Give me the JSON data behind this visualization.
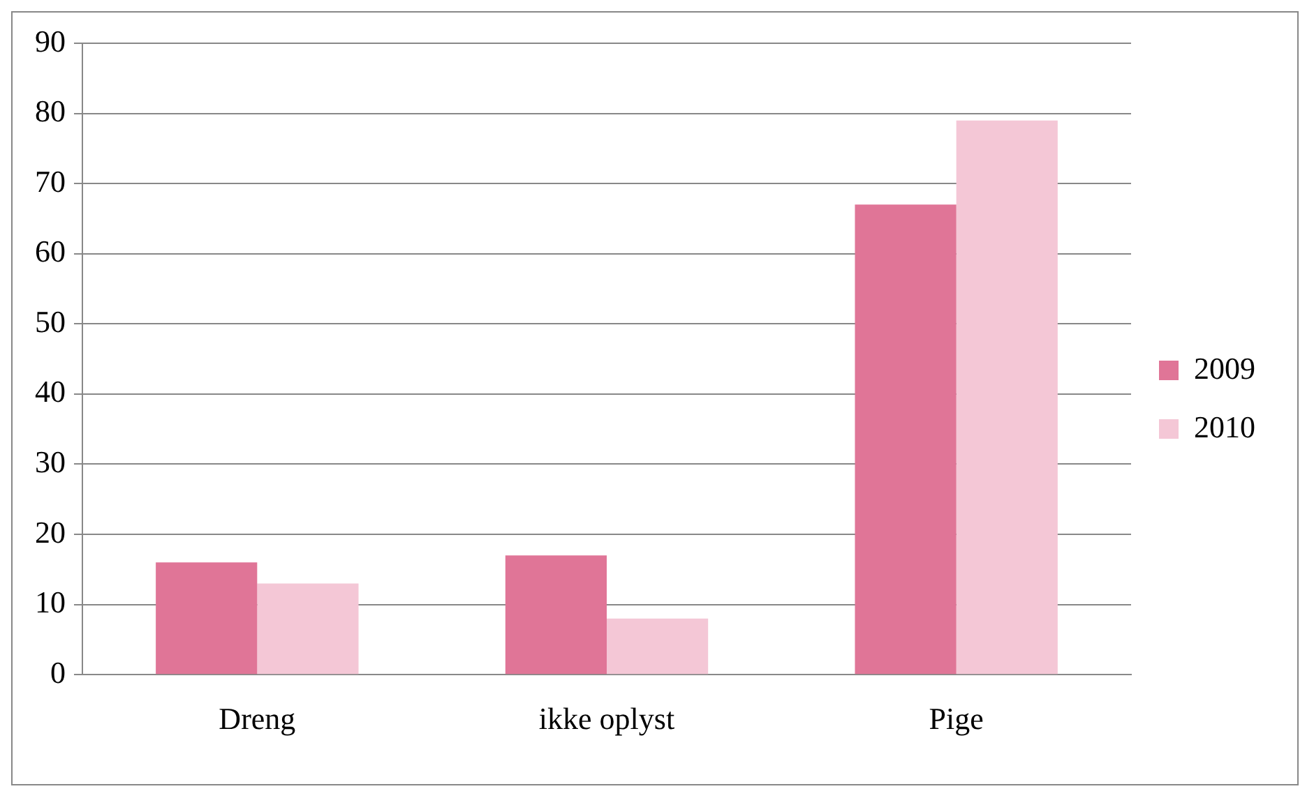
{
  "chart_data": {
    "type": "bar",
    "categories": [
      "Dreng",
      "ikke oplyst",
      "Pige"
    ],
    "series": [
      {
        "name": "2009",
        "color": "#e07597",
        "values": [
          16,
          17,
          67
        ]
      },
      {
        "name": "2010",
        "color": "#f4c7d6",
        "values": [
          13,
          8,
          79
        ]
      }
    ],
    "ylim": [
      0,
      90
    ],
    "yticks": [
      0,
      10,
      20,
      30,
      40,
      50,
      60,
      70,
      80,
      90
    ],
    "grid": "y",
    "legend": "right"
  }
}
